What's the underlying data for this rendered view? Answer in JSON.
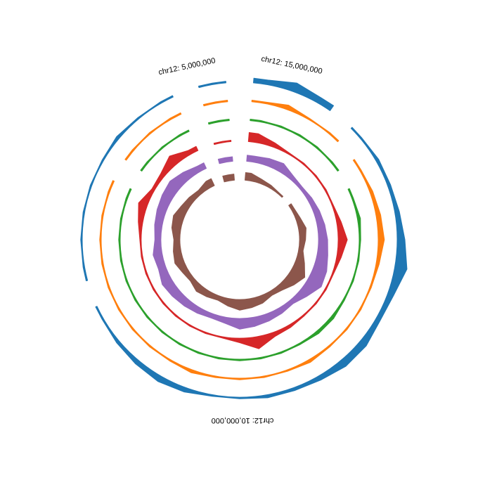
{
  "chart_data": {
    "type": "circular-area",
    "annotations": [
      "chr12: 5,000,000",
      "chr12: 15,000,000",
      "chr12: 10,000,000"
    ],
    "ylim": [
      0,
      10
    ],
    "series": [
      {
        "color": "#1f77b4",
        "values": [
          3,
          6,
          4,
          null,
          1,
          2,
          2,
          3,
          5,
          8,
          4,
          3,
          5,
          5,
          3,
          2,
          2,
          1,
          1,
          3,
          4,
          3,
          2,
          1,
          null,
          1,
          1,
          1,
          1,
          1,
          2,
          1,
          1,
          null,
          1
        ]
      },
      {
        "color": "#ff7f0e",
        "values": [
          1,
          3,
          1,
          1,
          null,
          1,
          2,
          3,
          4,
          2,
          1,
          1,
          1,
          1,
          2,
          1,
          1,
          1,
          1,
          2,
          1,
          1,
          1,
          1,
          1,
          1,
          1,
          1,
          1,
          null,
          1,
          1,
          1,
          null,
          1
        ]
      },
      {
        "color": "#2ca02c",
        "values": [
          1,
          1,
          1,
          1,
          1,
          null,
          1,
          2,
          1,
          1,
          1,
          1,
          2,
          2,
          1,
          1,
          1,
          1,
          1,
          1,
          1,
          1,
          1,
          1,
          1,
          1,
          1,
          1,
          1,
          null,
          1,
          1,
          1,
          null,
          1
        ]
      },
      {
        "color": "#d62728",
        "values": [
          6,
          3,
          1,
          1,
          1,
          1,
          1,
          3,
          6,
          3,
          1,
          1,
          1,
          1,
          2,
          3,
          8,
          3,
          1,
          1,
          1,
          1,
          1,
          1,
          1,
          1,
          1,
          3,
          6,
          2,
          3,
          7,
          3,
          null,
          1
        ]
      },
      {
        "color": "#9467bd",
        "values": [
          4,
          5,
          6,
          3,
          2,
          3,
          4,
          5,
          6,
          7,
          9,
          10,
          6,
          3,
          4,
          5,
          6,
          7,
          4,
          3,
          4,
          5,
          6,
          7,
          5,
          6,
          4,
          5,
          6,
          7,
          8,
          6,
          4,
          null,
          3
        ]
      },
      {
        "color": "#8c564b",
        "values": [
          5,
          3,
          2,
          1,
          null,
          2,
          3,
          5,
          4,
          3,
          6,
          10,
          7,
          4,
          3,
          5,
          6,
          7,
          5,
          3,
          4,
          5,
          3,
          4,
          6,
          5,
          4,
          6,
          7,
          5,
          4,
          3,
          5,
          null,
          4
        ]
      }
    ]
  }
}
